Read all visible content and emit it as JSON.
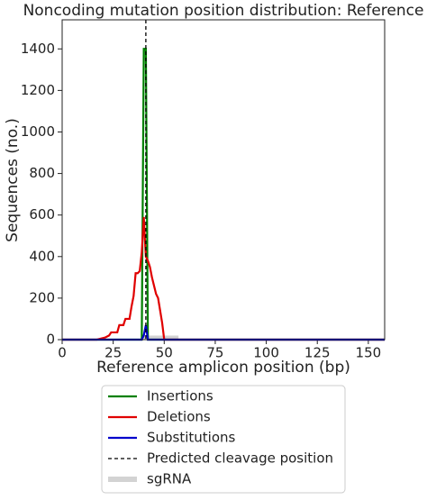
{
  "chart_data": {
    "type": "line",
    "title": "Noncoding mutation position distribution: Reference",
    "x_label": "Reference amplicon position (bp)",
    "y_label": "Sequences (no.)",
    "xlim": [
      0,
      158
    ],
    "ylim": [
      0,
      1540
    ],
    "xticks": [
      0,
      25,
      50,
      75,
      100,
      125,
      150
    ],
    "yticks": [
      0,
      200,
      400,
      600,
      800,
      1000,
      1200,
      1400
    ],
    "series": [
      {
        "name": "Insertions",
        "color": "#008000",
        "x": [
          0,
          39,
          40,
          41,
          42,
          158
        ],
        "values": [
          0,
          0,
          1400,
          1400,
          0,
          0
        ]
      },
      {
        "name": "Deletions",
        "color": "#e00000",
        "x": [
          0,
          17,
          19,
          21,
          23,
          24,
          27,
          28,
          30,
          31,
          33,
          34,
          35,
          36,
          37,
          38,
          39,
          40,
          41,
          42,
          43,
          44,
          45,
          46,
          47,
          48,
          49,
          50,
          158
        ],
        "values": [
          0,
          0,
          5,
          10,
          20,
          35,
          35,
          70,
          70,
          100,
          100,
          160,
          210,
          320,
          320,
          330,
          420,
          590,
          400,
          380,
          350,
          300,
          260,
          220,
          200,
          140,
          80,
          0,
          0
        ]
      },
      {
        "name": "Substitutions",
        "color": "#0000cc",
        "x": [
          0,
          39,
          40,
          41,
          42,
          158
        ],
        "values": [
          0,
          0,
          20,
          70,
          0,
          0
        ]
      }
    ],
    "cleavage": {
      "name": "Predicted cleavage position",
      "x": 41,
      "color": "#000000"
    },
    "sgrna": {
      "name": "sgRNA",
      "x": [
        40,
        57
      ],
      "color": "#d3d3d3"
    },
    "legend": "below"
  }
}
